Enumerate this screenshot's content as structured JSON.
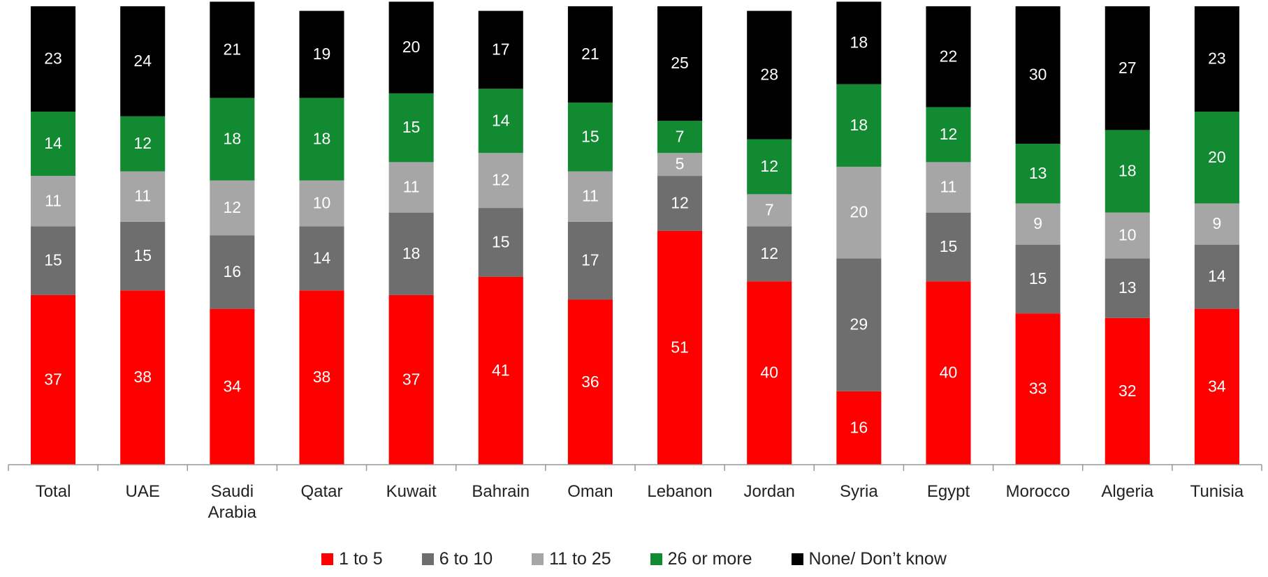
{
  "chart_data": {
    "type": "stacked_bar",
    "categories": [
      "Total",
      "UAE",
      "Saudi Arabia",
      "Qatar",
      "Kuwait",
      "Bahrain",
      "Oman",
      "Lebanon",
      "Jordan",
      "Syria",
      "Egypt",
      "Morocco",
      "Algeria",
      "Tunisia"
    ],
    "series": [
      {
        "name": "1 to 5",
        "color": "#ff0000",
        "values": [
          37,
          38,
          34,
          38,
          37,
          41,
          36,
          51,
          40,
          16,
          40,
          33,
          32,
          34
        ]
      },
      {
        "name": "6 to 10",
        "color": "#6e6e6e",
        "values": [
          15,
          15,
          16,
          14,
          18,
          15,
          17,
          12,
          12,
          29,
          15,
          15,
          13,
          14
        ]
      },
      {
        "name": "11 to 25",
        "color": "#a6a6a6",
        "values": [
          11,
          11,
          12,
          10,
          11,
          12,
          11,
          5,
          7,
          20,
          11,
          9,
          10,
          9
        ]
      },
      {
        "name": "26 or more",
        "color": "#128a32",
        "values": [
          14,
          12,
          18,
          18,
          15,
          14,
          15,
          7,
          12,
          18,
          12,
          13,
          18,
          20
        ]
      },
      {
        "name": "None/ Don’t know",
        "color": "#000000",
        "values": [
          23,
          24,
          21,
          19,
          20,
          17,
          21,
          25,
          28,
          18,
          22,
          30,
          27,
          23
        ]
      }
    ],
    "ylim": [
      0,
      100
    ],
    "legend": "bottom"
  }
}
